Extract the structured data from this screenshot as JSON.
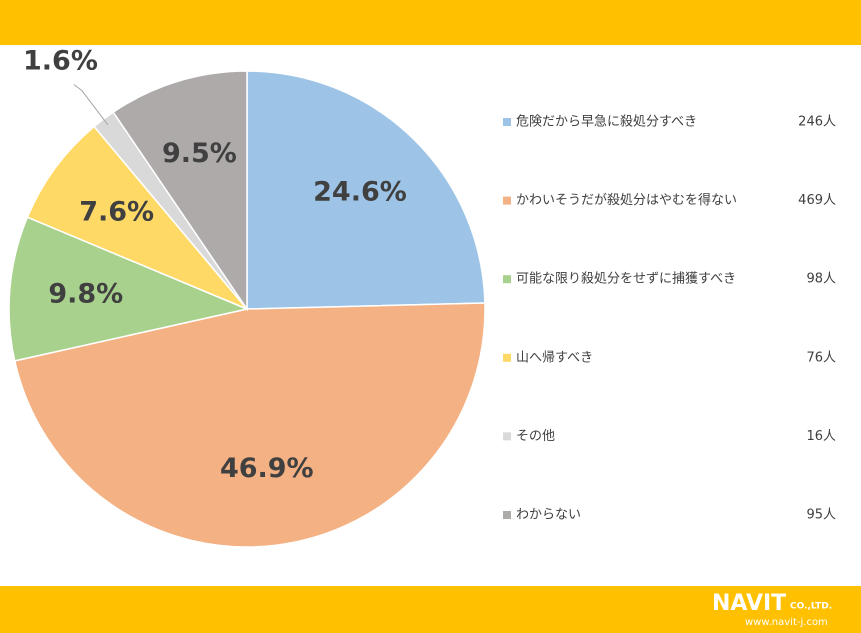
{
  "chart_data": {
    "type": "pie",
    "categories": [
      "危険だから早急に殺処分すべき",
      "かわいそうだが殺処分はやむを得ない",
      "可能な限り殺処分をせずに捕獲すべき",
      "山へ帰すべき",
      "その他",
      "わからない"
    ],
    "values": [
      24.6,
      46.9,
      9.8,
      7.6,
      1.6,
      9.5
    ],
    "value_labels": [
      "24.6%",
      "46.9%",
      "9.8%",
      "7.6%",
      "1.6%",
      "9.5%"
    ],
    "colors": [
      "#9DC3E6",
      "#F4B183",
      "#A9D18E",
      "#FFD966",
      "#D9D9D9",
      "#AEAAAA"
    ],
    "counts": [
      246,
      469,
      98,
      76,
      16,
      95
    ],
    "count_labels": [
      "246人",
      "469人",
      "98人",
      "76人",
      "16人",
      "95人"
    ],
    "legend": "right"
  },
  "logo": {
    "name": "NAVIT",
    "suffix": "CO.,LTD.",
    "url": "www.navit-j.com"
  }
}
